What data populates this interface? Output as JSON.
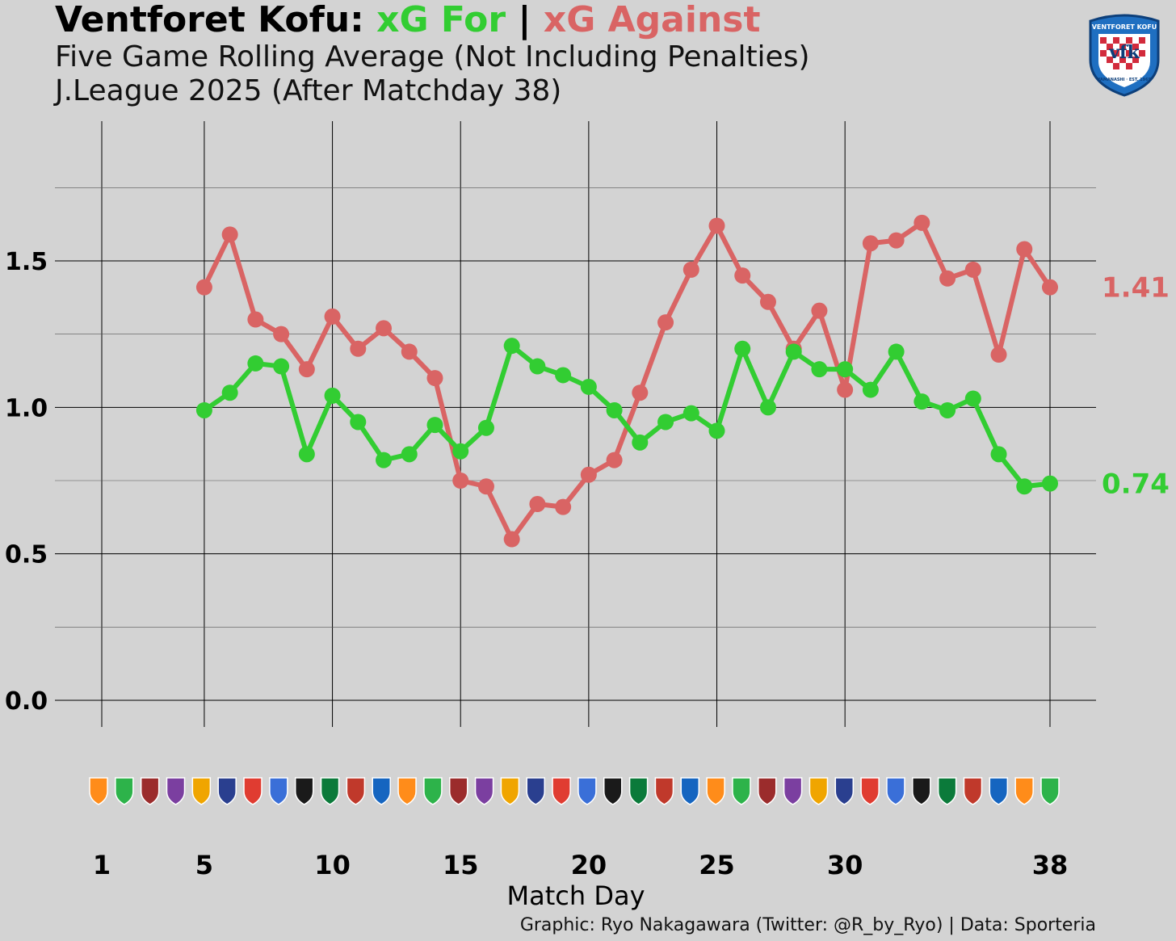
{
  "header": {
    "title_team": "Ventforet Kofu:",
    "title_for": "xG For",
    "title_sep": "|",
    "title_against": "xG Against",
    "subtitle_1": "Five Game Rolling Average (Not Including Penalties)",
    "subtitle_2": "J.League 2025 (After Matchday 38)"
  },
  "logo": {
    "text_top": "VENTFORET KOFU",
    "monogram": "vfk",
    "text_bottom": "YAMANASHI · EST. 1965"
  },
  "colors": {
    "background": "#d3d3d3",
    "xg_for": "#32cd32",
    "xg_against": "#d96464"
  },
  "chart_data": {
    "type": "line",
    "title": "Ventforet Kofu: xG For | xG Against",
    "xlabel": "Match Day",
    "ylabel": "",
    "xlim": [
      1,
      38
    ],
    "ylim": [
      0,
      1.75
    ],
    "x_ticks": [
      1,
      5,
      10,
      15,
      20,
      25,
      30,
      38
    ],
    "y_ticks": [
      0.0,
      0.5,
      1.0,
      1.5
    ],
    "y_tick_labels": [
      "0.0",
      "0.5",
      "1.0",
      "1.5"
    ],
    "x": [
      5,
      6,
      7,
      8,
      9,
      10,
      11,
      12,
      13,
      14,
      15,
      16,
      17,
      18,
      19,
      20,
      21,
      22,
      23,
      24,
      25,
      26,
      27,
      28,
      29,
      30,
      31,
      32,
      33,
      34,
      35,
      36,
      37,
      38
    ],
    "series": [
      {
        "name": "xG For",
        "color": "#32cd32",
        "values": [
          0.99,
          1.05,
          1.15,
          1.14,
          0.84,
          1.04,
          0.95,
          0.82,
          0.84,
          0.94,
          0.85,
          0.93,
          1.21,
          1.14,
          1.11,
          1.07,
          0.99,
          0.88,
          0.95,
          0.98,
          0.92,
          1.2,
          1.0,
          1.19,
          1.13,
          1.13,
          1.06,
          1.19,
          1.02,
          0.99,
          1.03,
          0.84,
          0.73,
          0.74
        ],
        "end_label": "0.74"
      },
      {
        "name": "xG Against",
        "color": "#d96464",
        "values": [
          1.41,
          1.59,
          1.3,
          1.25,
          1.13,
          1.31,
          1.2,
          1.27,
          1.19,
          1.1,
          0.75,
          0.73,
          0.55,
          0.67,
          0.66,
          0.77,
          0.82,
          1.05,
          1.29,
          1.47,
          1.62,
          1.45,
          1.36,
          1.2,
          1.33,
          1.06,
          1.56,
          1.57,
          1.63,
          1.44,
          1.47,
          1.18,
          1.54,
          1.41
        ],
        "end_label": "1.41"
      }
    ],
    "grid": true,
    "legend": "none",
    "opponent_badge_row": true
  },
  "caption": "Graphic: Ryo Nakagawara (Twitter: @R_by_Ryo) | Data: Sporteria"
}
